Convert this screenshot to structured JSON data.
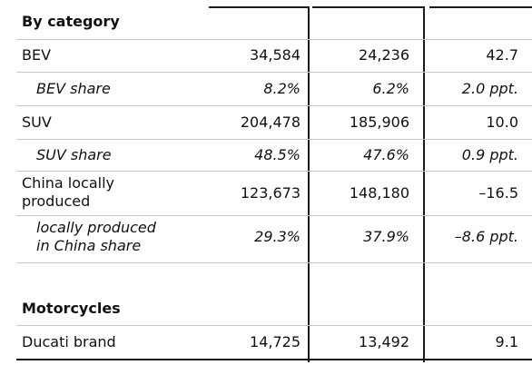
{
  "table": {
    "section_category": "By category",
    "section_motorcycles": "Motorcycles",
    "rows": [
      {
        "label": "BEV",
        "v1": "34,584",
        "v2": "24,236",
        "v3": "42.7"
      },
      {
        "label": "BEV share",
        "v1": "8.2%",
        "v2": "6.2%",
        "v3": "2.0 ppt."
      },
      {
        "label": "SUV",
        "v1": "204,478",
        "v2": "185,906",
        "v3": "10.0"
      },
      {
        "label": "SUV share",
        "v1": "48.5%",
        "v2": "47.6%",
        "v3": "0.9 ppt."
      },
      {
        "label_line1": "China locally",
        "label_line2": "produced",
        "v1": "123,673",
        "v2": "148,180",
        "v3": "–16.5"
      },
      {
        "label_line1": "locally produced",
        "label_line2": "in China share",
        "v1": "29.3%",
        "v2": "37.9%",
        "v3": "–8.6 ppt."
      },
      {
        "label": "Ducati brand",
        "v1": "14,725",
        "v2": "13,492",
        "v3": "9.1"
      }
    ]
  }
}
